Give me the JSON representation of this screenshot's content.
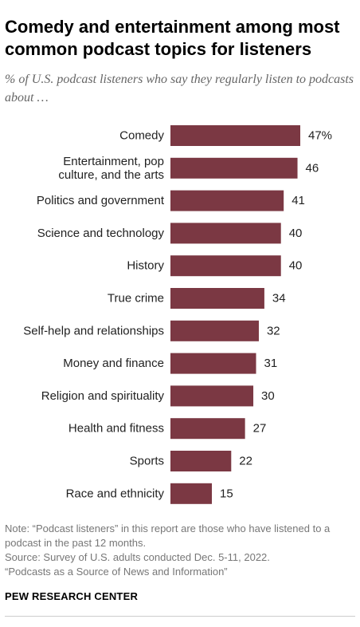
{
  "title": "Comedy and entertainment among most common podcast topics for listeners",
  "subtitle": "% of U.S. podcast listeners who say they regularly listen to podcasts about …",
  "colors": {
    "bar": "#7b3843",
    "label_text": "#222222",
    "note_text": "#777777"
  },
  "chart_data": {
    "type": "bar",
    "orientation": "horizontal",
    "categories": [
      "Comedy",
      "Entertainment, pop culture, and the arts",
      "Politics and government",
      "Science and technology",
      "History",
      "True crime",
      "Self-help and relationships",
      "Money and finance",
      "Religion and spirituality",
      "Health and fitness",
      "Sports",
      "Race and ethnicity"
    ],
    "category_lines": [
      [
        "Comedy"
      ],
      [
        "Entertainment, pop",
        "culture, and the arts"
      ],
      [
        "Politics and government"
      ],
      [
        "Science and technology"
      ],
      [
        "History"
      ],
      [
        "True crime"
      ],
      [
        "Self-help and relationships"
      ],
      [
        "Money and finance"
      ],
      [
        "Religion and spirituality"
      ],
      [
        "Health and fitness"
      ],
      [
        "Sports"
      ],
      [
        "Race and ethnicity"
      ]
    ],
    "values": [
      47,
      46,
      41,
      40,
      40,
      34,
      32,
      31,
      30,
      27,
      22,
      15
    ],
    "value_labels": [
      "47%",
      "46",
      "41",
      "40",
      "40",
      "34",
      "32",
      "31",
      "30",
      "27",
      "22",
      "15"
    ],
    "xlim": [
      0,
      47
    ],
    "grid": false,
    "legend": false
  },
  "footer": {
    "note": "Note: “Podcast listeners” in this report are those who have listened to a podcast in the past 12 months.",
    "source": "Source: Survey of U.S. adults conducted Dec. 5-11, 2022.",
    "report": "“Podcasts as a Source of News and Information”",
    "brand": "PEW RESEARCH CENTER"
  }
}
